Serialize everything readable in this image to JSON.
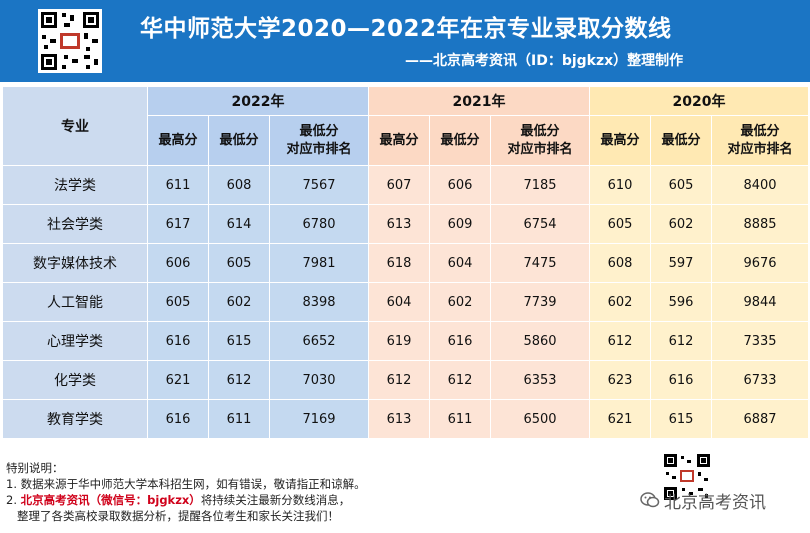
{
  "header": {
    "title": "华中师范大学2020—2022年在京专业录取分数线",
    "subtitle": "——北京高考资讯（ID：bjgkzx）整理制作"
  },
  "table": {
    "major_header": "专业",
    "years": [
      "2022年",
      "2021年",
      "2020年"
    ],
    "subheaders": {
      "max": "最高分",
      "min": "最低分",
      "rank_line1": "最低分",
      "rank_line2": "对应市排名"
    },
    "rows": [
      {
        "major": "法学类",
        "y2022": [
          "611",
          "608",
          "7567"
        ],
        "y2021": [
          "607",
          "606",
          "7185"
        ],
        "y2020": [
          "610",
          "605",
          "8400"
        ]
      },
      {
        "major": "社会学类",
        "y2022": [
          "617",
          "614",
          "6780"
        ],
        "y2021": [
          "613",
          "609",
          "6754"
        ],
        "y2020": [
          "605",
          "602",
          "8885"
        ]
      },
      {
        "major": "数字媒体技术",
        "y2022": [
          "606",
          "605",
          "7981"
        ],
        "y2021": [
          "618",
          "604",
          "7475"
        ],
        "y2020": [
          "608",
          "597",
          "9676"
        ]
      },
      {
        "major": "人工智能",
        "y2022": [
          "605",
          "602",
          "8398"
        ],
        "y2021": [
          "604",
          "602",
          "7739"
        ],
        "y2020": [
          "602",
          "596",
          "9844"
        ]
      },
      {
        "major": "心理学类",
        "y2022": [
          "616",
          "615",
          "6652"
        ],
        "y2021": [
          "619",
          "616",
          "5860"
        ],
        "y2020": [
          "612",
          "612",
          "7335"
        ]
      },
      {
        "major": "化学类",
        "y2022": [
          "621",
          "612",
          "7030"
        ],
        "y2021": [
          "612",
          "612",
          "6353"
        ],
        "y2020": [
          "623",
          "616",
          "6733"
        ]
      },
      {
        "major": "教育学类",
        "y2022": [
          "616",
          "611",
          "7169"
        ],
        "y2021": [
          "613",
          "611",
          "6500"
        ],
        "y2020": [
          "621",
          "615",
          "6887"
        ]
      }
    ]
  },
  "notes": {
    "heading": "特别说明：",
    "line1": "1. 数据来源于华中师范大学本科招生网，如有错误，敬请指正和谅解。",
    "line2_prefix": "2. ",
    "line2_red": "北京高考资讯（微信号：bjgkzx）",
    "line2_rest": "将持续关注最新分数线消息，",
    "line3": "   整理了各类高校录取数据分析，提醒各位考生和家长关注我们！"
  },
  "watermark": "北京高考资讯",
  "colors": {
    "header_bg": "#1b75c4",
    "col_2022": "#c4d9f0",
    "col_2021": "#fde4d6",
    "col_2020": "#fff1cc",
    "note_highlight": "#d0021b"
  },
  "icons": [
    "qr-code-icon",
    "wechat-icon"
  ]
}
